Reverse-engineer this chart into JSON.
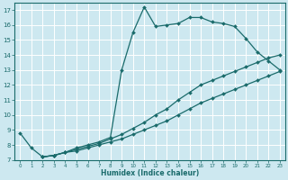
{
  "xlabel": "Humidex (Indice chaleur)",
  "background_color": "#cde8f0",
  "line_color": "#1a6b6b",
  "grid_color": "#ffffff",
  "xlim": [
    -0.5,
    23.5
  ],
  "ylim": [
    7,
    17.5
  ],
  "xticks": [
    0,
    1,
    2,
    3,
    4,
    5,
    6,
    7,
    8,
    9,
    10,
    11,
    12,
    13,
    14,
    15,
    16,
    17,
    18,
    19,
    20,
    21,
    22,
    23
  ],
  "yticks": [
    7,
    8,
    9,
    10,
    11,
    12,
    13,
    14,
    15,
    16,
    17
  ],
  "line1_x": [
    0,
    1,
    2,
    3,
    4,
    5,
    6,
    7,
    8,
    9,
    10,
    11,
    12,
    13,
    14,
    15,
    16,
    17,
    18,
    19,
    20,
    21,
    22,
    23
  ],
  "line1_y": [
    8.8,
    7.8,
    7.2,
    7.3,
    7.5,
    7.8,
    8.0,
    8.2,
    8.5,
    13.0,
    15.5,
    17.2,
    15.9,
    16.0,
    16.1,
    16.5,
    16.5,
    16.2,
    16.1,
    15.9,
    15.1,
    14.2,
    13.6,
    13.0
  ],
  "line2_x": [
    2,
    3,
    4,
    5,
    6,
    7,
    8,
    9,
    10,
    11,
    12,
    13,
    14,
    15,
    16,
    17,
    18,
    19,
    20,
    21,
    22,
    23
  ],
  "line2_y": [
    7.2,
    7.3,
    7.5,
    7.7,
    7.9,
    8.1,
    8.4,
    8.7,
    9.1,
    9.5,
    10.0,
    10.4,
    11.0,
    11.5,
    12.0,
    12.3,
    12.6,
    12.9,
    13.2,
    13.5,
    13.8,
    14.0
  ],
  "line3_x": [
    2,
    3,
    4,
    5,
    6,
    7,
    8,
    9,
    10,
    11,
    12,
    13,
    14,
    15,
    16,
    17,
    18,
    19,
    20,
    21,
    22,
    23
  ],
  "line3_y": [
    7.2,
    7.3,
    7.5,
    7.6,
    7.8,
    8.0,
    8.2,
    8.4,
    8.7,
    9.0,
    9.3,
    9.6,
    10.0,
    10.4,
    10.8,
    11.1,
    11.4,
    11.7,
    12.0,
    12.3,
    12.6,
    12.9
  ]
}
